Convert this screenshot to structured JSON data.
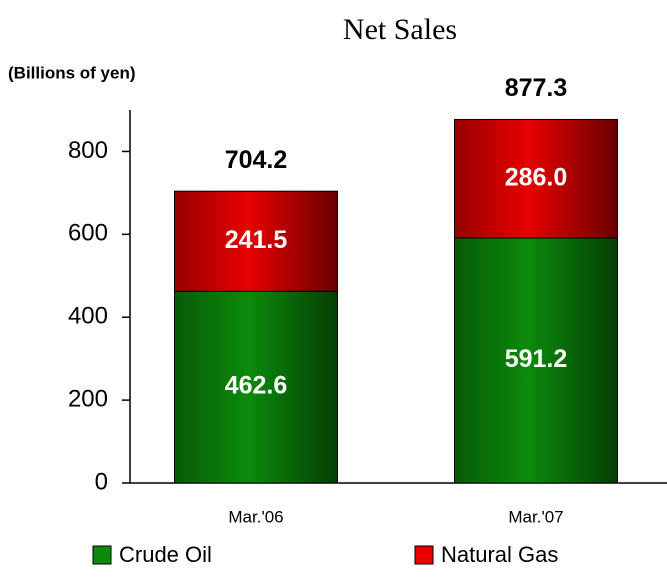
{
  "chart_data": {
    "type": "stacked_bar",
    "title": "Net Sales",
    "y_label": "(Billions of yen)",
    "categories": [
      "Mar.'06",
      "Mar.'07"
    ],
    "series": [
      {
        "name": "Crude Oil",
        "color": "#0b8a0b",
        "values": [
          462.6,
          591.2
        ],
        "value_labels": [
          "462.6",
          "591.2"
        ]
      },
      {
        "name": "Natural Gas",
        "color": "#e80000",
        "values": [
          241.5,
          286.0
        ],
        "value_labels": [
          "241.5",
          "286.0"
        ]
      }
    ],
    "totals": [
      704.2,
      877.3
    ],
    "ylim": [
      0,
      900
    ],
    "yticks": [
      0,
      200,
      400,
      600,
      800
    ]
  }
}
